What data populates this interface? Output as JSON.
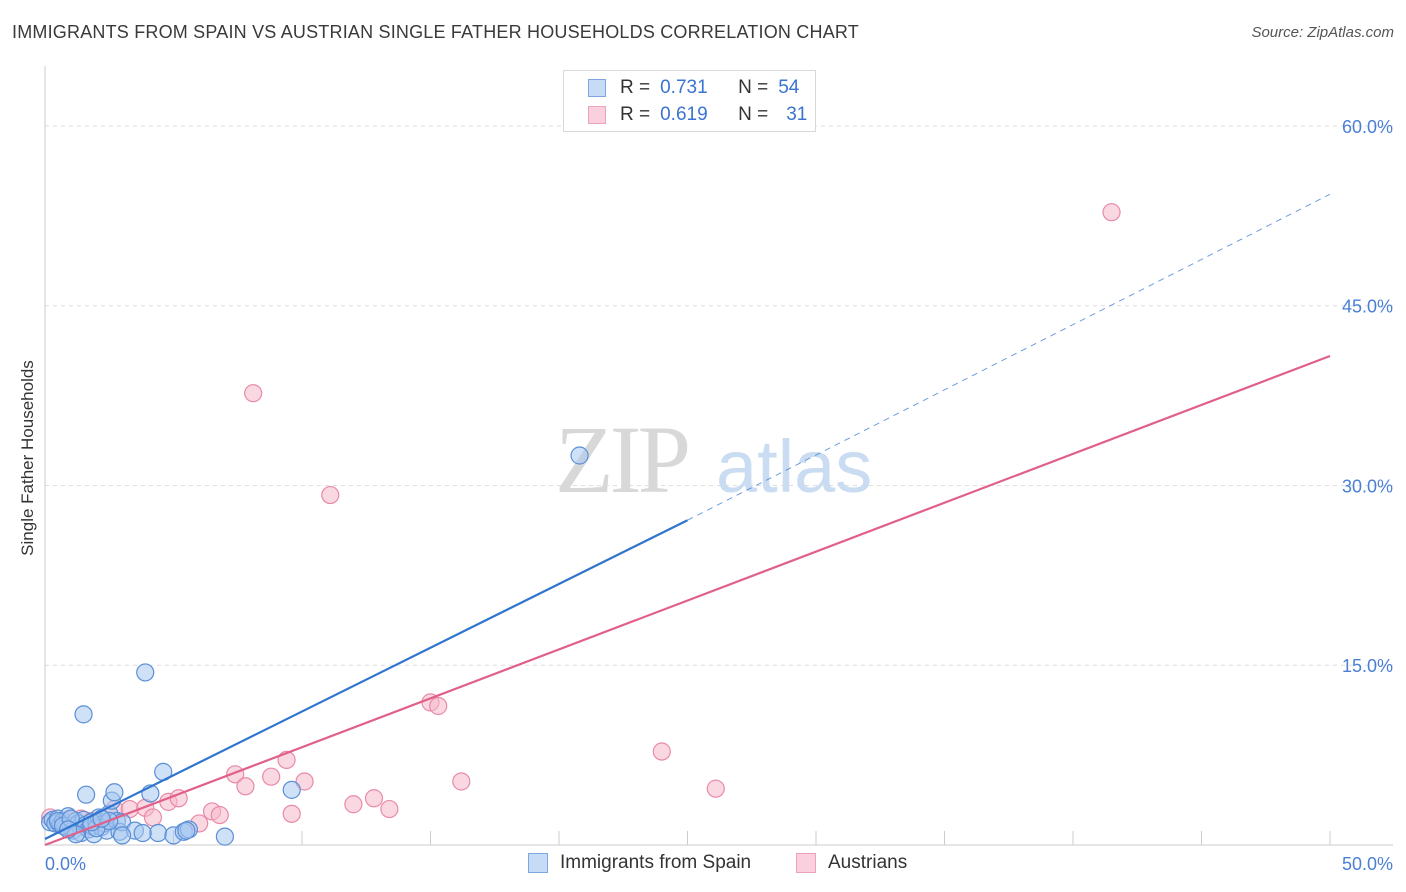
{
  "title": "IMMIGRANTS FROM SPAIN VS AUSTRIAN SINGLE FATHER HOUSEHOLDS CORRELATION CHART",
  "source": "Source: ZipAtlas.com",
  "watermark": {
    "zip": "ZIP",
    "atlas": "atlas"
  },
  "legend": {
    "rows": [
      {
        "r_label": "R =",
        "r_value": "0.731",
        "n_label": "N =",
        "n_value": "54"
      },
      {
        "r_label": "R =",
        "r_value": "0.619",
        "n_label": "N =",
        "n_value": "31"
      }
    ]
  },
  "colors": {
    "blue_fill": "#a8c8f0",
    "blue_stroke": "#5b8fd6",
    "blue_line": "#2f75d0",
    "pink_fill": "#f5b8cb",
    "pink_stroke": "#e88aa8",
    "pink_line": "#e0608a",
    "grid": "#dddddd",
    "tick_text": "#4a7fd4"
  },
  "chart_data": {
    "type": "scatter",
    "title": "IMMIGRANTS FROM SPAIN VS AUSTRIAN SINGLE FATHER HOUSEHOLDS CORRELATION CHART",
    "xlabel": "",
    "ylabel": "Single Father Households",
    "xlim": [
      0,
      50
    ],
    "ylim": [
      0,
      65
    ],
    "x_tick_labels": [
      "0.0%",
      "50.0%"
    ],
    "y_ticks": [
      15,
      30,
      45,
      60
    ],
    "y_tick_labels": [
      "15.0%",
      "30.0%",
      "45.0%",
      "60.0%"
    ],
    "grid": true,
    "legend_position": "bottom",
    "series": [
      {
        "name": "Immigrants from Spain",
        "color": "blue",
        "points": [
          [
            0.2,
            1.9
          ],
          [
            0.3,
            2.1
          ],
          [
            0.4,
            1.8
          ],
          [
            0.5,
            2.2
          ],
          [
            0.6,
            1.7
          ],
          [
            0.7,
            2.0
          ],
          [
            0.8,
            1.5
          ],
          [
            0.9,
            2.4
          ],
          [
            1.0,
            1.6
          ],
          [
            1.1,
            1.2
          ],
          [
            1.2,
            2.0
          ],
          [
            1.3,
            1.8
          ],
          [
            1.4,
            1.0
          ],
          [
            1.5,
            2.1
          ],
          [
            1.6,
            1.7
          ],
          [
            1.7,
            1.3
          ],
          [
            1.8,
            1.6
          ],
          [
            1.9,
            0.9
          ],
          [
            2.0,
            1.9
          ],
          [
            2.1,
            2.3
          ],
          [
            2.2,
            1.5
          ],
          [
            2.3,
            1.8
          ],
          [
            2.4,
            1.2
          ],
          [
            2.5,
            2.6
          ],
          [
            2.6,
            3.7
          ],
          [
            2.7,
            4.4
          ],
          [
            2.8,
            2.0
          ],
          [
            2.9,
            1.1
          ],
          [
            3.0,
            1.9
          ],
          [
            0.5,
            2.0
          ],
          [
            0.7,
            1.6
          ],
          [
            1.0,
            2.2
          ],
          [
            1.6,
            4.2
          ],
          [
            1.5,
            10.9
          ],
          [
            3.9,
            14.4
          ],
          [
            4.1,
            4.3
          ],
          [
            4.6,
            6.1
          ],
          [
            4.4,
            1.0
          ],
          [
            5.0,
            0.8
          ],
          [
            5.4,
            1.1
          ],
          [
            5.6,
            1.3
          ],
          [
            7.0,
            0.7
          ],
          [
            3.5,
            1.2
          ],
          [
            3.0,
            0.8
          ],
          [
            1.2,
            0.9
          ],
          [
            0.9,
            1.3
          ],
          [
            2.0,
            1.4
          ],
          [
            2.5,
            2.0
          ],
          [
            3.8,
            1.0
          ],
          [
            5.5,
            1.2
          ],
          [
            9.6,
            4.6
          ],
          [
            20.8,
            32.5
          ],
          [
            1.8,
            1.9
          ],
          [
            2.2,
            2.2
          ]
        ],
        "trend": {
          "x": [
            0,
            25
          ],
          "y": [
            0.5,
            27.1
          ],
          "dashed_extension": {
            "x": [
              25,
              50
            ],
            "y": [
              27.1,
              54.3
            ]
          }
        }
      },
      {
        "name": "Austrians",
        "color": "pink",
        "points": [
          [
            0.2,
            2.3
          ],
          [
            0.5,
            1.9
          ],
          [
            0.9,
            2.1
          ],
          [
            1.4,
            2.2
          ],
          [
            1.8,
            2.0
          ],
          [
            2.3,
            1.9
          ],
          [
            2.7,
            3.0
          ],
          [
            3.3,
            3.0
          ],
          [
            3.9,
            3.1
          ],
          [
            4.2,
            2.3
          ],
          [
            4.8,
            3.6
          ],
          [
            5.2,
            3.9
          ],
          [
            6.0,
            1.8
          ],
          [
            6.5,
            2.8
          ],
          [
            6.8,
            2.5
          ],
          [
            7.4,
            5.9
          ],
          [
            7.8,
            4.9
          ],
          [
            8.1,
            37.7
          ],
          [
            8.8,
            5.7
          ],
          [
            9.4,
            7.1
          ],
          [
            9.6,
            2.6
          ],
          [
            10.1,
            5.3
          ],
          [
            11.1,
            29.2
          ],
          [
            12.0,
            3.4
          ],
          [
            12.8,
            3.9
          ],
          [
            13.4,
            3.0
          ],
          [
            15.0,
            11.9
          ],
          [
            15.3,
            11.6
          ],
          [
            16.2,
            5.3
          ],
          [
            24.0,
            7.8
          ],
          [
            26.1,
            4.7
          ]
        ],
        "extra_point": [
          41.5,
          52.8
        ],
        "trend": {
          "x": [
            0,
            50
          ],
          "y": [
            0.0,
            40.8
          ]
        }
      }
    ]
  },
  "bottom_legend": {
    "items": [
      "Immigrants from Spain",
      "Austrians"
    ]
  }
}
